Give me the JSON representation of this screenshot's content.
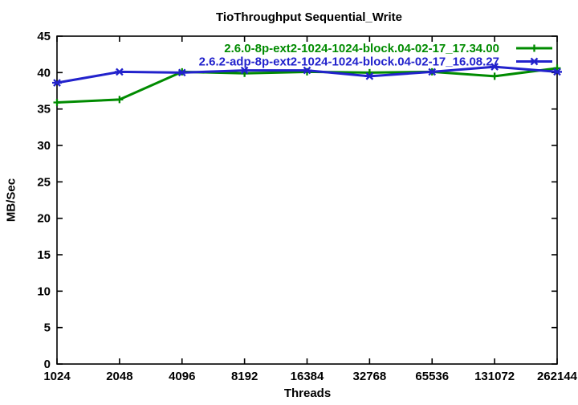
{
  "chart_data": {
    "type": "line",
    "title": "TioThroughput Sequential_Write",
    "xlabel": "Threads",
    "ylabel": "MB/Sec",
    "x_scale": "log2",
    "categories": [
      "1024",
      "2048",
      "4096",
      "8192",
      "16384",
      "32768",
      "65536",
      "131072",
      "262144"
    ],
    "yticks": [
      "0",
      "5",
      "10",
      "15",
      "20",
      "25",
      "30",
      "35",
      "40",
      "45"
    ],
    "ylim": [
      0,
      45
    ],
    "grid": false,
    "legend_position": "top-right-inside",
    "series": [
      {
        "name": "2.6.0-8p-ext2-1024-1024-block.04-02-17_17.34.00",
        "color": "#008b00",
        "marker": "plus",
        "values": [
          35.9,
          36.3,
          40.1,
          39.9,
          40.1,
          40.0,
          40.1,
          39.5,
          40.6
        ]
      },
      {
        "name": "2.6.2-adp-8p-ext2-1024-1024-block.04-02-17_16.08.27",
        "color": "#2222cc",
        "marker": "asterisk",
        "values": [
          38.6,
          40.1,
          40.0,
          40.3,
          40.3,
          39.5,
          40.1,
          40.8,
          40.1
        ]
      }
    ]
  },
  "colors": {
    "axis": "#000000",
    "background": "#ffffff"
  }
}
